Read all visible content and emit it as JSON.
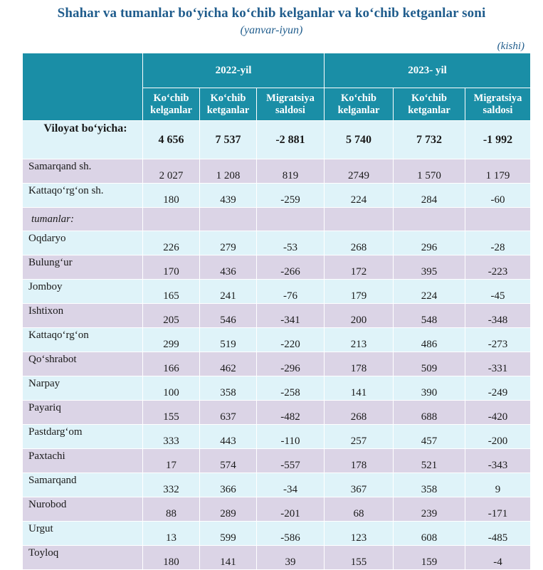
{
  "title": "Shahar va tumanlar bo‘yicha ko‘chib kelganlar va ko‘chib ketganlar soni",
  "subtitle": "(yanvar-iyun)",
  "unit": "(kishi)",
  "years": [
    "2022-yil",
    "2023- yil"
  ],
  "columns": [
    [
      "Ko‘chib",
      "kelganlar"
    ],
    [
      "Ko‘chib",
      "ketganlar"
    ],
    [
      "Migratsiya",
      "saldosi"
    ],
    [
      "Ko‘chib",
      "kelganlar"
    ],
    [
      "Ko‘chib",
      "ketganlar"
    ],
    [
      "Migratsiya",
      "saldosi"
    ]
  ],
  "total": {
    "name": "Viloyat bo‘yicha:",
    "values": [
      "4 656",
      "7 537",
      "-2 881",
      "5 740",
      "7 732",
      "-1 992"
    ]
  },
  "rows": [
    {
      "name": "Samarqand sh.",
      "values": [
        "2 027",
        "1 208",
        "819",
        "2749",
        "1 570",
        "1 179"
      ]
    },
    {
      "name": "Kattaqo‘rg‘on sh.",
      "values": [
        "180",
        "439",
        "-259",
        "224",
        "284",
        "-60"
      ]
    },
    {
      "name": "tumanlar:",
      "section": true
    },
    {
      "name": "Oqdaryo",
      "values": [
        "226",
        "279",
        "-53",
        "268",
        "296",
        "-28"
      ]
    },
    {
      "name": "Bulung‘ur",
      "values": [
        "170",
        "436",
        "-266",
        "172",
        "395",
        "-223"
      ]
    },
    {
      "name": "Jomboy",
      "values": [
        "165",
        "241",
        "-76",
        "179",
        "224",
        "-45"
      ]
    },
    {
      "name": "Ishtixon",
      "values": [
        "205",
        "546",
        "-341",
        "200",
        "548",
        "-348"
      ]
    },
    {
      "name": "Kattaqo‘rg‘on",
      "values": [
        "299",
        "519",
        "-220",
        "213",
        "486",
        "-273"
      ]
    },
    {
      "name": "Qo‘shrabot",
      "values": [
        "166",
        "462",
        "-296",
        "178",
        "509",
        "-331"
      ]
    },
    {
      "name": "Narpay",
      "values": [
        "100",
        "358",
        "-258",
        "141",
        "390",
        "-249"
      ]
    },
    {
      "name": "Payariq",
      "values": [
        "155",
        "637",
        "-482",
        "268",
        "688",
        "-420"
      ]
    },
    {
      "name": "Pastdarg‘om",
      "values": [
        "333",
        "443",
        "-110",
        "257",
        "457",
        "-200"
      ]
    },
    {
      "name": "Paxtachi",
      "values": [
        "17",
        "574",
        "-557",
        "178",
        "521",
        "-343"
      ]
    },
    {
      "name": "Samarqand",
      "values": [
        "332",
        "366",
        "-34",
        "367",
        "358",
        "9"
      ]
    },
    {
      "name": "Nurobod",
      "values": [
        "88",
        "289",
        "-201",
        "68",
        "239",
        "-171"
      ]
    },
    {
      "name": "Urgut",
      "values": [
        "13",
        "599",
        "-586",
        "123",
        "608",
        "-485"
      ]
    },
    {
      "name": "Toyloq",
      "values": [
        "180",
        "141",
        "39",
        "155",
        "159",
        "-4"
      ]
    }
  ],
  "colors": {
    "header": "#1a8ea6",
    "row_purple": "#dbd4e6",
    "row_light": "#dff3f9",
    "title": "#1f5c8c"
  }
}
